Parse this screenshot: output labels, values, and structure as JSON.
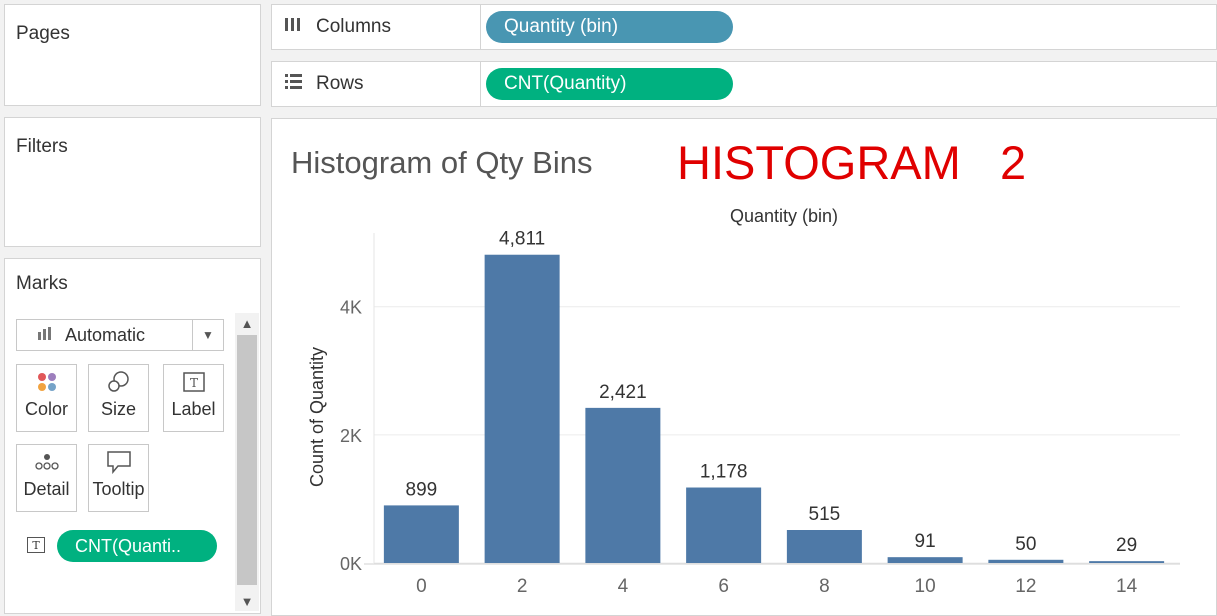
{
  "panels": {
    "pages_title": "Pages",
    "filters_title": "Filters",
    "marks_title": "Marks"
  },
  "shelves": {
    "columns_label": "Columns",
    "columns_pill": "Quantity (bin)",
    "rows_label": "Rows",
    "rows_pill": "CNT(Quantity)"
  },
  "marks": {
    "type": "Automatic",
    "buttons": [
      "Color",
      "Size",
      "Label",
      "Detail",
      "Tooltip"
    ],
    "field_pill": "CNT(Quanti..",
    "colors": {
      "blue": "#4996b2",
      "green": "#00b180"
    }
  },
  "view": {
    "title": "Histogram of Qty Bins",
    "annotation": "HISTOGRAM   2",
    "annotation_color": "#e00000"
  },
  "chart_data": {
    "type": "bar",
    "title": "Histogram of Qty Bins",
    "xlabel": "Quantity (bin)",
    "ylabel": "Count of Quantity",
    "categories": [
      "0",
      "2",
      "4",
      "6",
      "8",
      "10",
      "12",
      "14"
    ],
    "values": [
      899,
      4811,
      2421,
      1178,
      515,
      91,
      50,
      29
    ],
    "value_labels": [
      "899",
      "4,811",
      "2,421",
      "1,178",
      "515",
      "91",
      "50",
      "29"
    ],
    "y_ticks": [
      0,
      2000,
      4000
    ],
    "y_tick_labels": [
      "0K",
      "2K",
      "4K"
    ],
    "ylim": [
      0,
      5150
    ],
    "bar_color": "#4e79a7",
    "grid": true
  }
}
